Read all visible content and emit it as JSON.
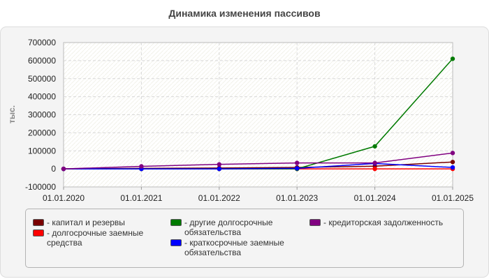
{
  "title": "Динамика изменения пассивов",
  "chart_data": {
    "type": "line",
    "title": "Динамика изменения пассивов",
    "ylabel": "тыс.",
    "xlabel": "",
    "categories": [
      "01.01.2020",
      "01.01.2021",
      "01.01.2022",
      "01.01.2023",
      "01.01.2024",
      "01.01.2025"
    ],
    "ylim": [
      -100000,
      700000
    ],
    "yticks": [
      700000,
      600000,
      500000,
      400000,
      300000,
      200000,
      100000,
      0,
      -100000
    ],
    "grid": true,
    "legend_position": "bottom",
    "series": [
      {
        "name": "- капитал и резервы",
        "color": "#7a0000",
        "values": [
          0,
          3000,
          5000,
          8000,
          15000,
          38000
        ]
      },
      {
        "name": "- долгосрочные заемные средства",
        "color": "#ff0000",
        "values": [
          0,
          0,
          0,
          0,
          0,
          0
        ]
      },
      {
        "name": "- другие долгосрочные обязательства",
        "color": "#007a00",
        "values": [
          0,
          0,
          0,
          0,
          125000,
          610000
        ]
      },
      {
        "name": "- краткосрочные заемные обязательства",
        "color": "#0000ff",
        "values": [
          0,
          0,
          0,
          3000,
          30000,
          8000
        ]
      },
      {
        "name": "- кредиторская задолженность",
        "color": "#800080",
        "values": [
          0,
          14000,
          25000,
          33000,
          33000,
          88000
        ]
      }
    ]
  }
}
